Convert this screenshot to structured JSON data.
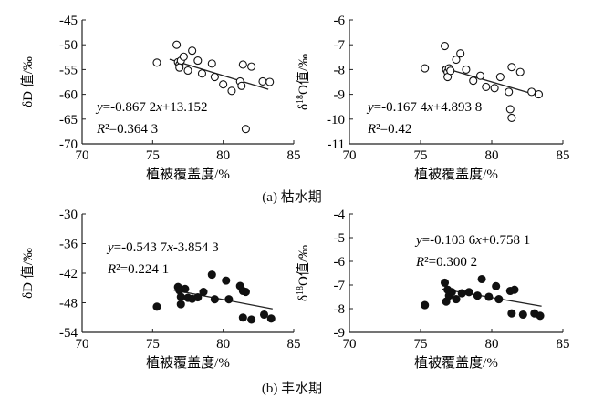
{
  "captions": {
    "a": "(a) 枯水期",
    "b": "(b) 丰水期"
  },
  "chart_data": [
    {
      "id": "a-dD",
      "type": "scatter",
      "ylabel": "δD 值/‰",
      "xlabel": "植被覆盖度/%",
      "xlim": [
        70,
        85
      ],
      "ylim": [
        -70,
        -45
      ],
      "xticks": [
        "70",
        "75",
        "80",
        "85"
      ],
      "yticks": [
        "-45",
        "-50",
        "-55",
        "-60",
        "-65",
        "-70"
      ],
      "marker": "open",
      "equation": "y=-0.867 2x+13.152",
      "r2": "R²=0.364 3",
      "trend": {
        "slope": -0.8672,
        "intercept": 13.152,
        "x": [
          76.2,
          83.2
        ]
      },
      "points": [
        [
          75.3,
          -53.6
        ],
        [
          76.7,
          -50.0
        ],
        [
          76.8,
          -53.5
        ],
        [
          76.9,
          -54.0
        ],
        [
          77.0,
          -53.2
        ],
        [
          76.9,
          -54.6
        ],
        [
          77.2,
          -52.4
        ],
        [
          77.5,
          -55.2
        ],
        [
          77.8,
          -51.2
        ],
        [
          78.2,
          -53.2
        ],
        [
          78.5,
          -55.8
        ],
        [
          79.2,
          -53.8
        ],
        [
          79.4,
          -56.5
        ],
        [
          80.0,
          -58.0
        ],
        [
          80.6,
          -59.3
        ],
        [
          81.2,
          -57.4
        ],
        [
          81.4,
          -54.0
        ],
        [
          81.3,
          -58.3
        ],
        [
          81.6,
          -67.0
        ],
        [
          82.0,
          -54.4
        ],
        [
          82.8,
          -57.4
        ],
        [
          83.3,
          -57.5
        ]
      ]
    },
    {
      "id": "a-d18O",
      "type": "scatter",
      "ylabel": "δ18O值/‰",
      "xlabel": "植被覆盖度/%",
      "xlim": [
        70,
        85
      ],
      "ylim": [
        -11,
        -6
      ],
      "xticks": [
        "70",
        "75",
        "80",
        "85"
      ],
      "yticks": [
        "-6",
        "-7",
        "-8",
        "-9",
        "-10",
        "-11"
      ],
      "marker": "open",
      "equation": "y=-0.167 4x+4.893 8",
      "r2": "R²=0.42",
      "trend": {
        "slope": -0.1674,
        "intercept": 4.8938,
        "x": [
          76.5,
          83.5
        ]
      },
      "points": [
        [
          75.3,
          -7.95
        ],
        [
          76.7,
          -7.05
        ],
        [
          76.8,
          -8.0
        ],
        [
          76.9,
          -8.1
        ],
        [
          77.0,
          -7.95
        ],
        [
          76.9,
          -8.3
        ],
        [
          77.1,
          -8.05
        ],
        [
          77.5,
          -7.6
        ],
        [
          77.8,
          -7.35
        ],
        [
          78.2,
          -8.0
        ],
        [
          78.7,
          -8.45
        ],
        [
          79.2,
          -8.25
        ],
        [
          79.6,
          -8.7
        ],
        [
          80.2,
          -8.75
        ],
        [
          80.6,
          -8.3
        ],
        [
          81.2,
          -8.9
        ],
        [
          81.3,
          -9.6
        ],
        [
          81.4,
          -9.95
        ],
        [
          81.4,
          -7.9
        ],
        [
          82.0,
          -8.1
        ],
        [
          82.8,
          -8.9
        ],
        [
          83.3,
          -9.0
        ]
      ]
    },
    {
      "id": "b-dD",
      "type": "scatter",
      "ylabel": "δD 值/‰",
      "xlabel": "植被覆盖度/%",
      "xlim": [
        70,
        85
      ],
      "ylim": [
        -54,
        -30
      ],
      "xticks": [
        "70",
        "75",
        "80",
        "85"
      ],
      "yticks": [
        "-30",
        "-36",
        "-42",
        "-48",
        "-54"
      ],
      "marker": "filled",
      "equation": "y=-0.543 7x-3.854 3",
      "r2": "R²=0.224 1",
      "trend": {
        "slope": -0.5437,
        "intercept": -3.8543,
        "x": [
          76.5,
          83.5
        ]
      },
      "points": [
        [
          75.3,
          -48.8
        ],
        [
          76.8,
          -44.8
        ],
        [
          76.9,
          -45.5
        ],
        [
          77.0,
          -46.8
        ],
        [
          77.0,
          -48.3
        ],
        [
          77.3,
          -45.2
        ],
        [
          77.5,
          -47.0
        ],
        [
          77.8,
          -47.2
        ],
        [
          78.2,
          -46.9
        ],
        [
          78.6,
          -45.8
        ],
        [
          79.2,
          -42.3
        ],
        [
          79.4,
          -47.3
        ],
        [
          80.2,
          -43.5
        ],
        [
          80.4,
          -47.3
        ],
        [
          81.2,
          -44.6
        ],
        [
          81.4,
          -45.6
        ],
        [
          81.4,
          -51.0
        ],
        [
          81.6,
          -45.8
        ],
        [
          82.0,
          -51.4
        ],
        [
          82.9,
          -50.4
        ],
        [
          83.4,
          -51.2
        ]
      ]
    },
    {
      "id": "b-d18O",
      "type": "scatter",
      "ylabel": "δ18O值/‰",
      "xlabel": "植被覆盖度/%",
      "xlim": [
        70,
        85
      ],
      "ylim": [
        -9,
        -4
      ],
      "xticks": [
        "70",
        "75",
        "80",
        "85"
      ],
      "yticks": [
        "-4",
        "-5",
        "-6",
        "-7",
        "-8",
        "-9"
      ],
      "marker": "filled",
      "equation": "y=-0.103 6x+0.758 1",
      "r2": "R²=0.300 2",
      "trend": {
        "slope": -0.1036,
        "intercept": 0.7581,
        "x": [
          76.5,
          83.5
        ]
      },
      "points": [
        [
          75.3,
          -7.85
        ],
        [
          76.7,
          -6.9
        ],
        [
          76.8,
          -7.7
        ],
        [
          76.9,
          -7.2
        ],
        [
          77.0,
          -7.45
        ],
        [
          77.2,
          -7.3
        ],
        [
          77.5,
          -7.6
        ],
        [
          77.9,
          -7.35
        ],
        [
          78.4,
          -7.3
        ],
        [
          79.0,
          -7.45
        ],
        [
          79.3,
          -6.75
        ],
        [
          79.8,
          -7.5
        ],
        [
          80.3,
          -7.05
        ],
        [
          80.5,
          -7.6
        ],
        [
          81.3,
          -7.25
        ],
        [
          81.4,
          -8.2
        ],
        [
          81.6,
          -7.2
        ],
        [
          82.2,
          -8.25
        ],
        [
          83.0,
          -8.2
        ],
        [
          83.4,
          -8.3
        ]
      ]
    }
  ]
}
